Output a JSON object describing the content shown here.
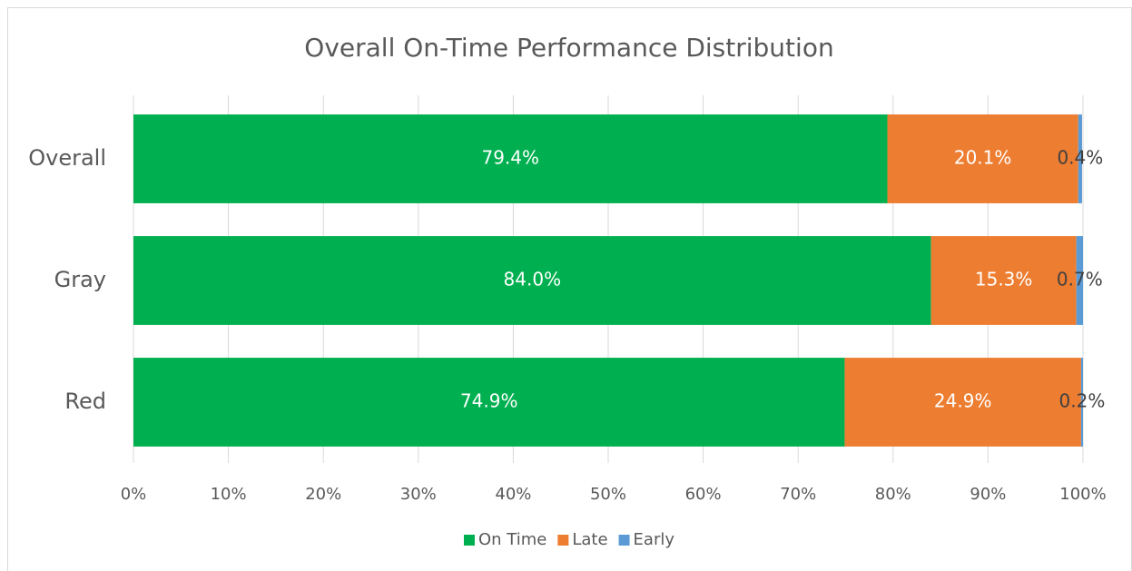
{
  "chart_data": {
    "type": "stacked-bar-horizontal",
    "title": "Overall On-Time Performance Distribution",
    "categories": [
      "Overall",
      "Gray",
      "Red"
    ],
    "series": [
      {
        "name": "On Time",
        "color": "#00b050",
        "label_color": "#ffffff",
        "values": [
          79.4,
          84.0,
          74.9
        ],
        "value_labels": [
          "79.4%",
          "84.0%",
          "74.9%"
        ]
      },
      {
        "name": "Late",
        "color": "#ed7d31",
        "label_color": "#ffffff",
        "values": [
          20.1,
          15.3,
          24.9
        ],
        "value_labels": [
          "20.1%",
          "15.3%",
          "24.9%"
        ]
      },
      {
        "name": "Early",
        "color": "#5b9bd5",
        "label_color": "#404040",
        "values": [
          0.4,
          0.7,
          0.2
        ],
        "value_labels": [
          "0.4%",
          "0.7%",
          "0.2%"
        ]
      }
    ],
    "xlim": [
      0,
      100
    ],
    "xticks": [
      {
        "value": 0,
        "label": "0%"
      },
      {
        "value": 10,
        "label": "10%"
      },
      {
        "value": 20,
        "label": "20%"
      },
      {
        "value": 30,
        "label": "30%"
      },
      {
        "value": 40,
        "label": "40%"
      },
      {
        "value": 50,
        "label": "50%"
      },
      {
        "value": 60,
        "label": "60%"
      },
      {
        "value": 70,
        "label": "70%"
      },
      {
        "value": 80,
        "label": "80%"
      },
      {
        "value": 90,
        "label": "90%"
      },
      {
        "value": 100,
        "label": "100%"
      }
    ],
    "grid": true,
    "legend": "bottom"
  }
}
